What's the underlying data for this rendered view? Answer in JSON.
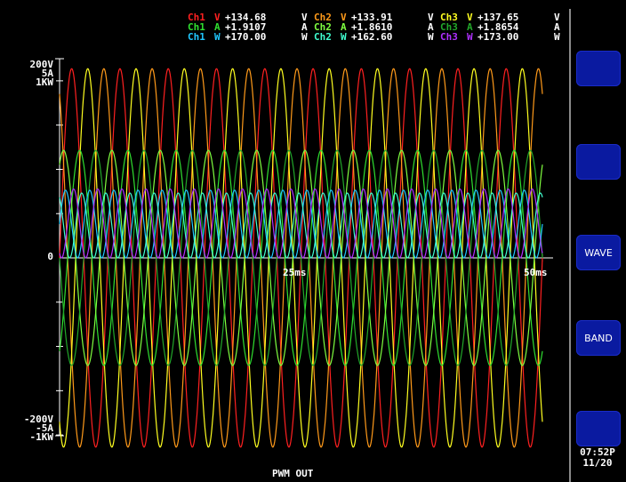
{
  "readouts": {
    "rows": [
      [
        {
          "ch": "Ch1",
          "q": "V",
          "value": "+134.68",
          "unit": "V"
        },
        {
          "ch": "Ch2",
          "q": "V",
          "value": "+133.91",
          "unit": "V"
        },
        {
          "ch": "Ch3",
          "q": "V",
          "value": "+137.65",
          "unit": "V"
        }
      ],
      [
        {
          "ch": "Ch1",
          "q": "A",
          "value": "+1.9107",
          "unit": "A"
        },
        {
          "ch": "Ch2",
          "q": "A",
          "value": "+1.8610",
          "unit": "A"
        },
        {
          "ch": "Ch3",
          "q": "A",
          "value": "+1.8654",
          "unit": "A"
        }
      ],
      [
        {
          "ch": "Ch1",
          "q": "W",
          "value": "+170.00",
          "unit": "W"
        },
        {
          "ch": "Ch2",
          "q": "W",
          "value": "+162.60",
          "unit": "W"
        },
        {
          "ch": "Ch3",
          "q": "W",
          "value": "+173.00",
          "unit": "W"
        }
      ]
    ]
  },
  "axis": {
    "top": [
      "200V",
      "5A",
      "1KW"
    ],
    "zero": "0",
    "bottom": [
      "-200V",
      "-5A",
      "-1KW"
    ],
    "x_mid": "25ms",
    "x_end": "50ms"
  },
  "status_label": "PWM OUT",
  "softkeys": [
    "",
    "",
    "WAVE",
    "BAND",
    ""
  ],
  "clock": {
    "time": "07:52P",
    "date": "11/20"
  },
  "colors": {
    "ch1_v": "#ff2020",
    "ch2_v": "#ff9a1a",
    "ch3_v": "#ffff20",
    "ch1_a": "#30e030",
    "ch2_a": "#80ff40",
    "ch3_a": "#22a82a",
    "ch1_w": "#20c8ff",
    "ch2_w": "#40ffd0",
    "ch3_w": "#b030ff",
    "softkey": "#0a1aa0"
  },
  "chart_data": {
    "type": "line",
    "x_unit": "ms",
    "xlim": [
      0,
      50
    ],
    "ylim_labels": {
      "voltage": [
        -200,
        200
      ],
      "current": [
        -5,
        5
      ],
      "power": [
        -1000,
        1000
      ]
    },
    "series": [
      {
        "name": "Ch1 V",
        "color_key": "ch1_v",
        "amplitude": 190,
        "phase_deg": 0,
        "period_ms": 5,
        "scale": "voltage"
      },
      {
        "name": "Ch2 V",
        "color_key": "ch2_v",
        "amplitude": 190,
        "phase_deg": 120,
        "period_ms": 5,
        "scale": "voltage"
      },
      {
        "name": "Ch3 V",
        "color_key": "ch3_v",
        "amplitude": 190,
        "phase_deg": 240,
        "period_ms": 5,
        "scale": "voltage"
      },
      {
        "name": "Ch1 A",
        "color_key": "ch1_a",
        "amplitude": 2.7,
        "phase_deg": -60,
        "period_ms": 5,
        "scale": "current"
      },
      {
        "name": "Ch2 A",
        "color_key": "ch2_a",
        "amplitude": 2.7,
        "phase_deg": 60,
        "period_ms": 5,
        "scale": "current"
      },
      {
        "name": "Ch3 A",
        "color_key": "ch3_a",
        "amplitude": 2.7,
        "phase_deg": 180,
        "period_ms": 5,
        "scale": "current"
      },
      {
        "name": "Ch1 W",
        "color_key": "ch1_w",
        "amplitude": 170,
        "offset": 170,
        "phase_deg": 0,
        "period_ms": 2.5,
        "scale": "power"
      },
      {
        "name": "Ch2 W",
        "color_key": "ch2_w",
        "amplitude": 163,
        "offset": 163,
        "phase_deg": 120,
        "period_ms": 2.5,
        "scale": "power"
      },
      {
        "name": "Ch3 W",
        "color_key": "ch3_w",
        "amplitude": 173,
        "offset": 173,
        "phase_deg": 240,
        "period_ms": 2.5,
        "scale": "power"
      }
    ]
  }
}
